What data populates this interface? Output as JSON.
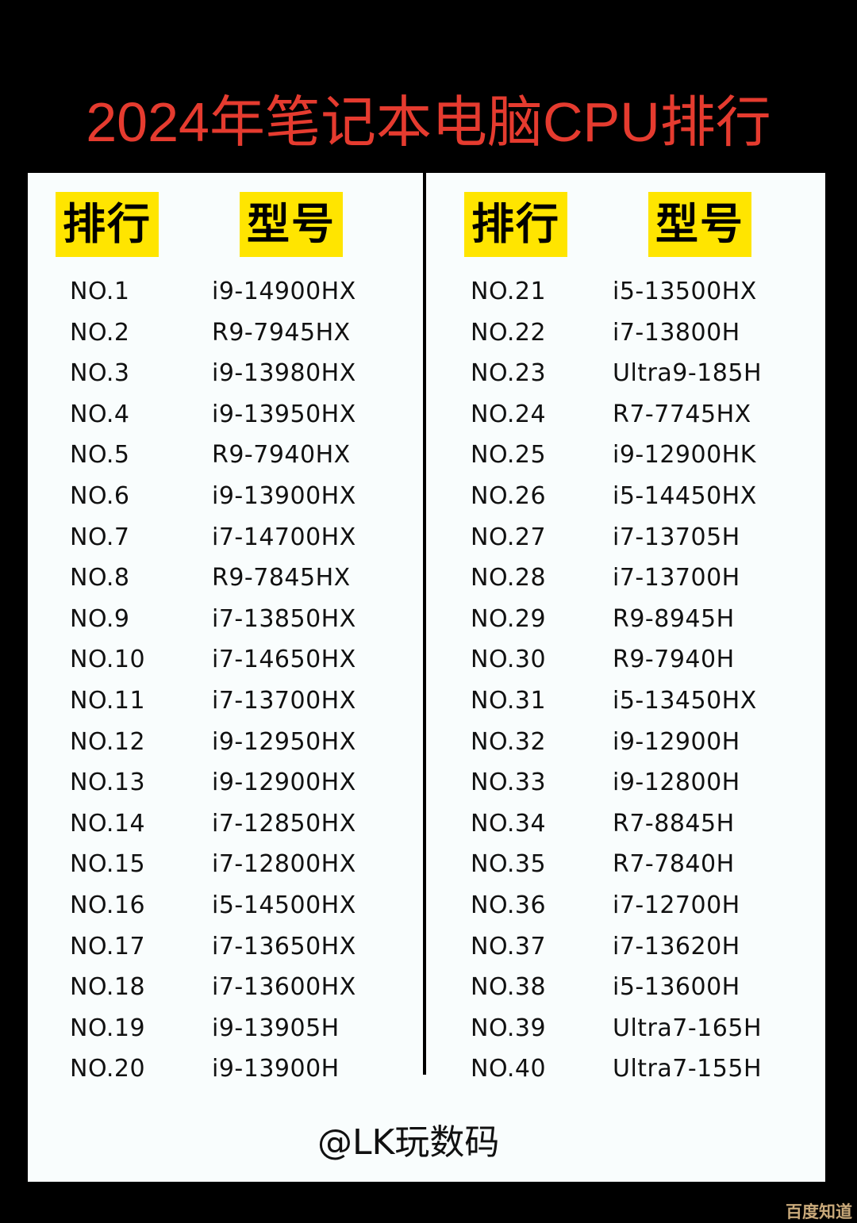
{
  "title": "2024年笔记本电脑CPU排行",
  "headers": {
    "rank": "排行",
    "model": "型号"
  },
  "left": [
    {
      "rank": "NO.1",
      "model": "i9-14900HX"
    },
    {
      "rank": "NO.2",
      "model": "R9-7945HX"
    },
    {
      "rank": "NO.3",
      "model": "i9-13980HX"
    },
    {
      "rank": "NO.4",
      "model": "i9-13950HX"
    },
    {
      "rank": "NO.5",
      "model": "R9-7940HX"
    },
    {
      "rank": "NO.6",
      "model": "i9-13900HX"
    },
    {
      "rank": "NO.7",
      "model": "i7-14700HX"
    },
    {
      "rank": "NO.8",
      "model": "R9-7845HX"
    },
    {
      "rank": "NO.9",
      "model": "i7-13850HX"
    },
    {
      "rank": "NO.10",
      "model": "i7-14650HX"
    },
    {
      "rank": "NO.11",
      "model": "i7-13700HX"
    },
    {
      "rank": "NO.12",
      "model": "i9-12950HX"
    },
    {
      "rank": "NO.13",
      "model": "i9-12900HX"
    },
    {
      "rank": "NO.14",
      "model": "i7-12850HX"
    },
    {
      "rank": "NO.15",
      "model": "i7-12800HX"
    },
    {
      "rank": "NO.16",
      "model": "i5-14500HX"
    },
    {
      "rank": "NO.17",
      "model": "i7-13650HX"
    },
    {
      "rank": "NO.18",
      "model": "i7-13600HX"
    },
    {
      "rank": "NO.19",
      "model": "i9-13905H"
    },
    {
      "rank": "NO.20",
      "model": "i9-13900H"
    }
  ],
  "right": [
    {
      "rank": "NO.21",
      "model": "i5-13500HX"
    },
    {
      "rank": "NO.22",
      "model": "i7-13800H"
    },
    {
      "rank": "NO.23",
      "model": "Ultra9-185H"
    },
    {
      "rank": "NO.24",
      "model": "R7-7745HX"
    },
    {
      "rank": "NO.25",
      "model": "i9-12900HK"
    },
    {
      "rank": "NO.26",
      "model": "i5-14450HX"
    },
    {
      "rank": "NO.27",
      "model": "i7-13705H"
    },
    {
      "rank": "NO.28",
      "model": "i7-13700H"
    },
    {
      "rank": "NO.29",
      "model": "R9-8945H"
    },
    {
      "rank": "NO.30",
      "model": "R9-7940H"
    },
    {
      "rank": "NO.31",
      "model": "i5-13450HX"
    },
    {
      "rank": "NO.32",
      "model": "i9-12900H"
    },
    {
      "rank": "NO.33",
      "model": "i9-12800H"
    },
    {
      "rank": "NO.34",
      "model": "R7-8845H"
    },
    {
      "rank": "NO.35",
      "model": "R7-7840H"
    },
    {
      "rank": "NO.36",
      "model": "i7-12700H"
    },
    {
      "rank": "NO.37",
      "model": "i7-13620H"
    },
    {
      "rank": "NO.38",
      "model": "i5-13600H"
    },
    {
      "rank": "NO.39",
      "model": "Ultra7-165H"
    },
    {
      "rank": "NO.40",
      "model": "Ultra7-155H"
    }
  ],
  "footer": "@LK玩数码",
  "watermark": "百度知道",
  "colors": {
    "title": "#e53b2f",
    "header_bg": "#ffe500",
    "panel": "#f9fdfd",
    "background": "#000000"
  }
}
